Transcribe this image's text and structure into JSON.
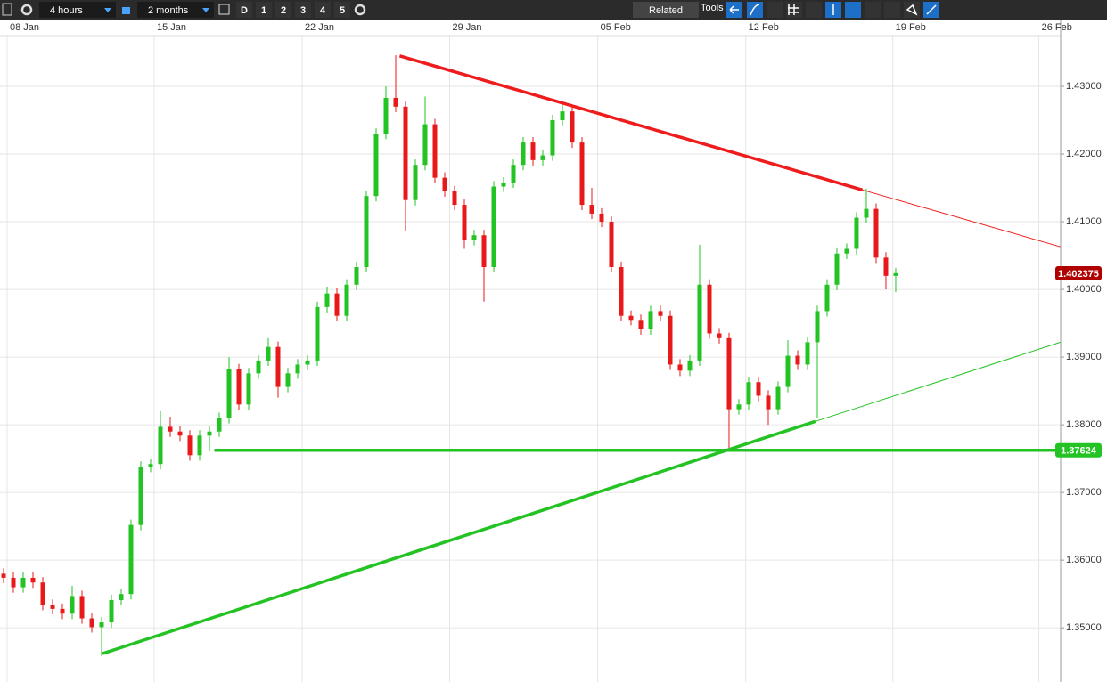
{
  "toolbar": {
    "timeframe": "4 hours",
    "range": "2 months",
    "buttons": [
      "D",
      "1",
      "2",
      "3",
      "4",
      "5"
    ],
    "related": "Related",
    "tools": "Tools"
  },
  "chart_data": {
    "type": "candlestick",
    "up_color": "#22c322",
    "down_color": "#e8191a",
    "grid": true,
    "open": [
      1.358,
      1.3574,
      1.356,
      1.3574,
      1.3567,
      1.3534,
      1.3528,
      1.3521,
      1.3547,
      1.3514,
      1.3501,
      1.3508,
      1.3541,
      1.355,
      1.3652,
      1.3738,
      1.3742,
      1.3797,
      1.379,
      1.3784,
      1.3755,
      1.3784,
      1.379,
      1.381,
      1.3882,
      1.383,
      1.3876,
      1.3895,
      1.3915,
      1.3856,
      1.3876,
      1.3889,
      1.3895,
      1.3974,
      1.3994,
      1.3961,
      1.4007,
      1.4033,
      1.4138,
      1.423,
      1.4283,
      1.427,
      1.4132,
      1.4184,
      1.4244,
      1.4165,
      1.4145,
      1.4125,
      1.4073,
      1.408,
      1.4033,
      1.4152,
      1.4158,
      1.4184,
      1.4217,
      1.4191,
      1.4198,
      1.425,
      1.4263,
      1.4217,
      1.4125,
      1.4112,
      1.41,
      1.4033,
      1.3961,
      1.3955,
      1.3941,
      1.3968,
      1.3961,
      1.3889,
      1.388,
      1.3895,
      1.4007,
      1.3935,
      1.3928,
      1.3823,
      1.383,
      1.3863,
      1.3843,
      1.3823,
      1.3856,
      1.3902,
      1.3889,
      1.3922,
      1.3968,
      1.4007,
      1.4053,
      1.406,
      1.4106,
      1.4119,
      1.4047,
      1.402
    ],
    "high": [
      1.3588,
      1.3582,
      1.3582,
      1.3582,
      1.3575,
      1.3542,
      1.3536,
      1.3562,
      1.3555,
      1.3522,
      1.3516,
      1.3549,
      1.3558,
      1.366,
      1.3746,
      1.375,
      1.382,
      1.3812,
      1.3798,
      1.3792,
      1.3792,
      1.3798,
      1.3818,
      1.39,
      1.389,
      1.3884,
      1.3903,
      1.3928,
      1.3923,
      1.3884,
      1.3897,
      1.3903,
      1.3982,
      1.4004,
      1.4002,
      1.4015,
      1.4041,
      1.4146,
      1.4238,
      1.43,
      1.4346,
      1.4278,
      1.4192,
      1.4285,
      1.4252,
      1.4173,
      1.4153,
      1.4133,
      1.4088,
      1.4088,
      1.416,
      1.4166,
      1.4192,
      1.4225,
      1.4225,
      1.4206,
      1.4258,
      1.4278,
      1.4271,
      1.4225,
      1.415,
      1.412,
      1.4108,
      1.4041,
      1.3969,
      1.3963,
      1.3976,
      1.3976,
      1.3969,
      1.3897,
      1.3903,
      1.4066,
      1.4015,
      1.3943,
      1.3936,
      1.3838,
      1.3871,
      1.3871,
      1.3851,
      1.3864,
      1.3925,
      1.391,
      1.393,
      1.3976,
      1.4015,
      1.4061,
      1.4068,
      1.4114,
      1.4149,
      1.4127,
      1.4055,
      1.4032
    ],
    "low": [
      1.3566,
      1.3552,
      1.3552,
      1.3559,
      1.3526,
      1.352,
      1.3513,
      1.3513,
      1.3506,
      1.3493,
      1.3458,
      1.35,
      1.3533,
      1.3542,
      1.3644,
      1.373,
      1.3734,
      1.3782,
      1.3776,
      1.3747,
      1.3747,
      1.3762,
      1.3782,
      1.3802,
      1.3822,
      1.3822,
      1.3868,
      1.3887,
      1.384,
      1.3848,
      1.3868,
      1.3881,
      1.3887,
      1.3966,
      1.3953,
      1.3953,
      1.3999,
      1.4025,
      1.413,
      1.4222,
      1.4262,
      1.4086,
      1.4124,
      1.4176,
      1.4157,
      1.4137,
      1.4117,
      1.406,
      1.4065,
      1.3982,
      1.4025,
      1.4144,
      1.415,
      1.4176,
      1.4183,
      1.4183,
      1.419,
      1.4242,
      1.4209,
      1.4117,
      1.4104,
      1.4092,
      1.4025,
      1.3953,
      1.3947,
      1.3933,
      1.3933,
      1.3953,
      1.3881,
      1.3872,
      1.3872,
      1.3887,
      1.3927,
      1.392,
      1.3766,
      1.3815,
      1.3822,
      1.3835,
      1.38,
      1.3815,
      1.3848,
      1.3881,
      1.3881,
      1.381,
      1.396,
      1.3999,
      1.4045,
      1.4052,
      1.4098,
      1.4039,
      1.4,
      1.3996
    ],
    "close": [
      1.3574,
      1.356,
      1.3574,
      1.3567,
      1.3534,
      1.3528,
      1.3521,
      1.3547,
      1.3514,
      1.3501,
      1.3508,
      1.3541,
      1.355,
      1.3652,
      1.3738,
      1.3742,
      1.3797,
      1.379,
      1.3784,
      1.3755,
      1.3784,
      1.379,
      1.381,
      1.3882,
      1.383,
      1.3876,
      1.3895,
      1.3915,
      1.3856,
      1.3876,
      1.3889,
      1.3895,
      1.3974,
      1.3994,
      1.3961,
      1.4007,
      1.4033,
      1.4138,
      1.423,
      1.4283,
      1.427,
      1.4132,
      1.4184,
      1.4244,
      1.4165,
      1.4145,
      1.4125,
      1.4073,
      1.408,
      1.4033,
      1.4152,
      1.4158,
      1.4184,
      1.4217,
      1.4191,
      1.4198,
      1.425,
      1.4263,
      1.4217,
      1.4125,
      1.4112,
      1.41,
      1.4033,
      1.3961,
      1.3955,
      1.3941,
      1.3968,
      1.3961,
      1.3889,
      1.388,
      1.3895,
      1.4007,
      1.3935,
      1.3928,
      1.3823,
      1.383,
      1.3863,
      1.3843,
      1.3823,
      1.3856,
      1.3902,
      1.3889,
      1.3922,
      1.3968,
      1.4007,
      1.4053,
      1.406,
      1.4106,
      1.4119,
      1.4047,
      1.402,
      1.4024
    ],
    "xlim": [
      -0.3636,
      107.82
    ],
    "xticks": [
      {
        "value": 0.36,
        "label": "08 Jan"
      },
      {
        "value": 15.36,
        "label": "15 Jan"
      },
      {
        "value": 30.45,
        "label": "22 Jan"
      },
      {
        "value": 45.5,
        "label": "29 Jan"
      },
      {
        "value": 60.6,
        "label": "05 Feb"
      },
      {
        "value": 75.7,
        "label": "12 Feb"
      },
      {
        "value": 90.7,
        "label": "19 Feb"
      },
      {
        "value": 105.6,
        "label": "26 Feb"
      }
    ],
    "ylim": [
      1.342,
      1.4375
    ],
    "yticks": [
      {
        "value": 1.35,
        "label": "1.35000"
      },
      {
        "value": 1.36,
        "label": "1.36000"
      },
      {
        "value": 1.37,
        "label": "1.37000"
      },
      {
        "value": 1.38,
        "label": "1.38000"
      },
      {
        "value": 1.39,
        "label": "1.39000"
      },
      {
        "value": 1.4,
        "label": "1.40000"
      },
      {
        "value": 1.41,
        "label": "1.41000"
      },
      {
        "value": 1.42,
        "label": "1.42000"
      },
      {
        "value": 1.43,
        "label": "1.43000"
      }
    ],
    "lines": [
      {
        "color": "#ee1c1c",
        "weight": "bold",
        "x": [
          40.4,
          87.6
        ],
        "y": [
          1.4345,
          1.4147
        ]
      },
      {
        "color": "#ee1c1c",
        "weight": "thin",
        "x": [
          87.6,
          107.8
        ],
        "y": [
          1.4147,
          1.4063
        ]
      },
      {
        "color": "#22c322",
        "weight": "bold",
        "x": [
          10.1,
          82.8
        ],
        "y": [
          1.3462,
          1.3805
        ]
      },
      {
        "color": "#22c322",
        "weight": "thin",
        "x": [
          82.8,
          107.8
        ],
        "y": [
          1.3805,
          1.3922
        ]
      },
      {
        "color": "#22c322",
        "weight": "bold",
        "x": [
          21.5,
          107.8
        ],
        "y": [
          1.37624,
          1.37624
        ]
      }
    ],
    "price_tags": [
      {
        "value": 1.402375,
        "color": "#b00000"
      },
      {
        "value": 1.37624,
        "color": "#22c322"
      }
    ]
  }
}
